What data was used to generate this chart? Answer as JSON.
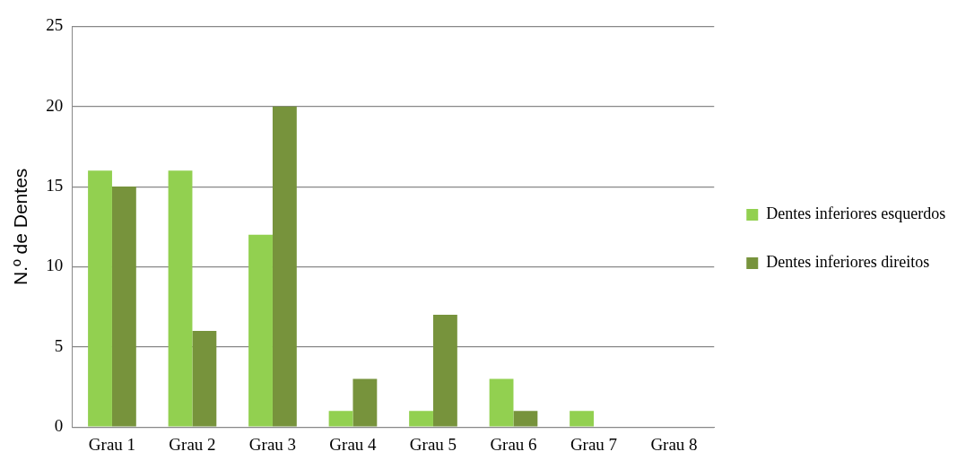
{
  "chart_data": {
    "type": "bar",
    "ylabel": "N.º de Dentes",
    "categories": [
      "Grau 1",
      "Grau 2",
      "Grau 3",
      "Grau 4",
      "Grau 5",
      "Grau 6",
      "Grau 7",
      "Grau 8"
    ],
    "series": [
      {
        "name": "Dentes inferiores esquerdos",
        "color": "#92d050",
        "values": [
          16,
          16,
          12,
          1,
          1,
          3,
          1,
          0
        ]
      },
      {
        "name": "Dentes inferiores direitos",
        "color": "#77933c",
        "values": [
          15,
          6,
          20,
          3,
          7,
          1,
          0,
          0
        ]
      }
    ],
    "ylim": [
      0,
      25
    ],
    "yticks": [
      0,
      5,
      10,
      15,
      20,
      25
    ],
    "grid": "y",
    "legend": "right"
  }
}
